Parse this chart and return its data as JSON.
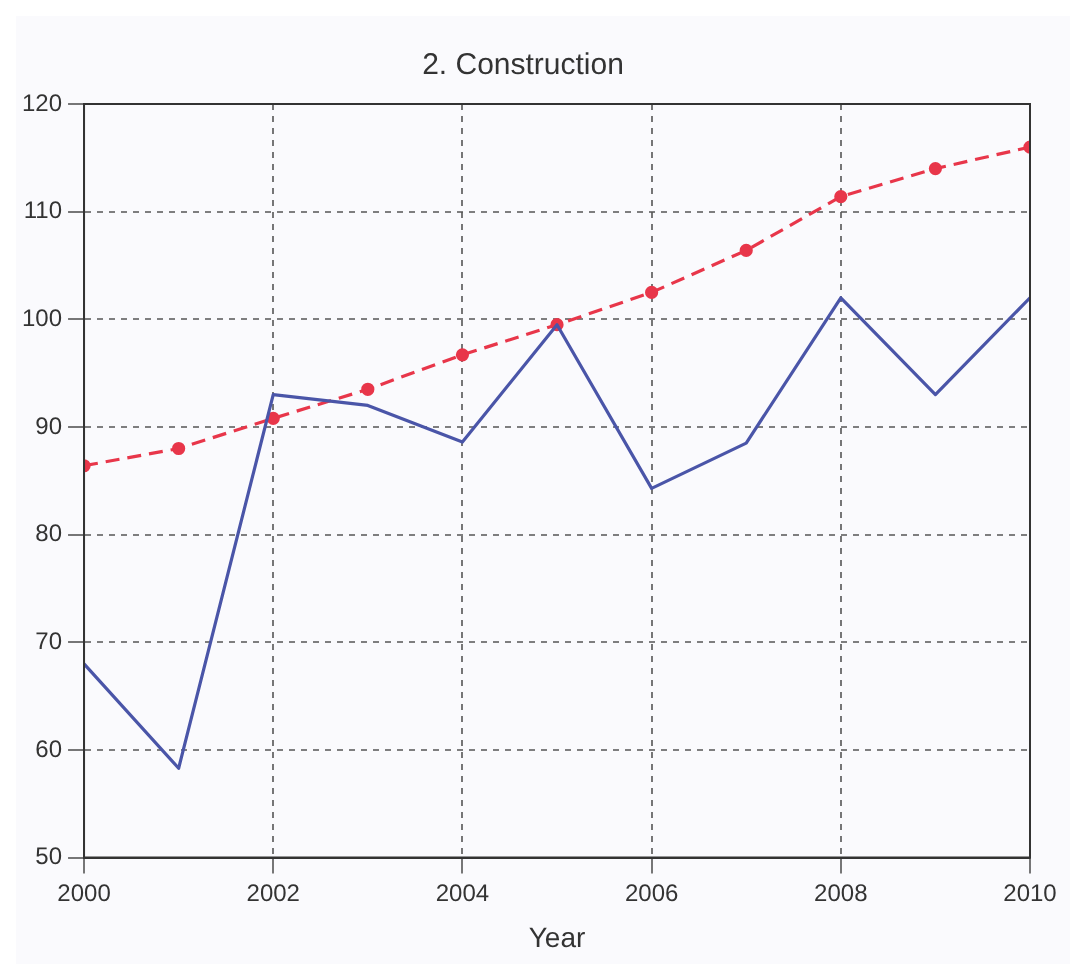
{
  "chart_data": {
    "type": "line",
    "title": "2. Construction",
    "xlabel": "Year",
    "x": [
      2000,
      2001,
      2002,
      2003,
      2004,
      2005,
      2006,
      2007,
      2008,
      2009,
      2010
    ],
    "series": [
      {
        "color": "#4a55a8",
        "values": [
          68,
          58.3,
          93,
          92,
          88.6,
          99.5,
          84.3,
          88.5,
          102,
          93,
          102
        ],
        "marker": "none",
        "line_style": "solid"
      },
      {
        "color": "#e8364a",
        "values": [
          86.4,
          88,
          90.8,
          93.5,
          96.7,
          99.5,
          102.5,
          106.4,
          111.4,
          114,
          116
        ],
        "marker": "circle",
        "line_style": "dashed"
      }
    ],
    "xlim": [
      2000,
      2010
    ],
    "xticks": [
      2000,
      2002,
      2004,
      2006,
      2008,
      2010
    ],
    "ylim": [
      50,
      120
    ],
    "yticks": [
      50,
      60,
      70,
      80,
      90,
      100,
      110,
      120
    ],
    "grid": true,
    "legend": false
  }
}
